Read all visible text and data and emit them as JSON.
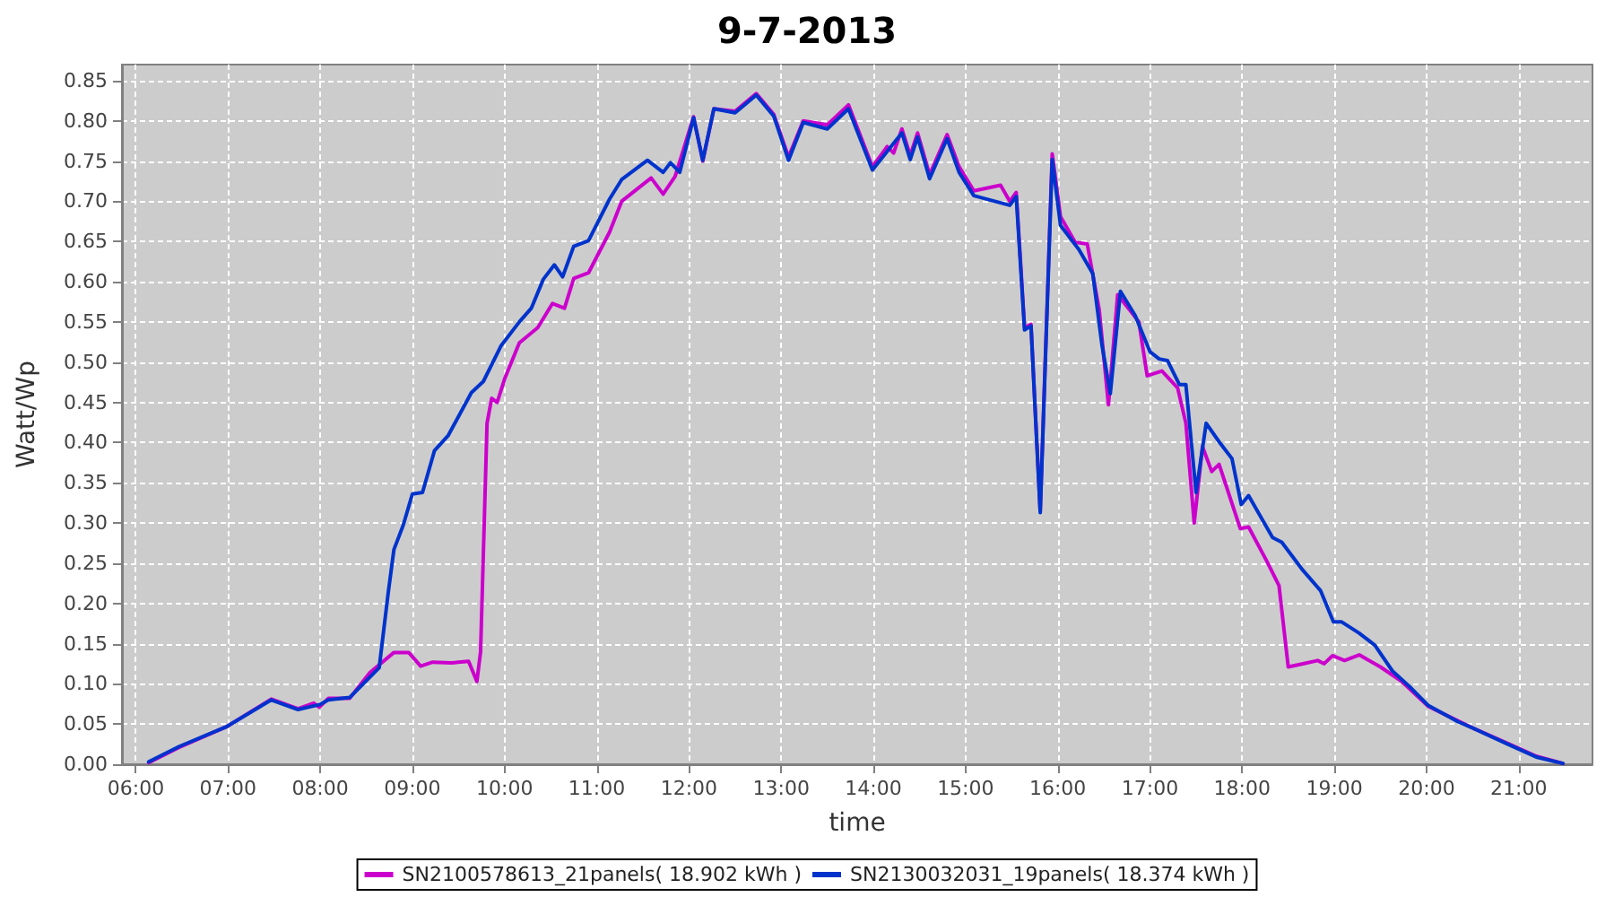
{
  "chart_data": {
    "type": "line",
    "title": "9-7-2013",
    "xlabel": "time",
    "ylabel": "Watt/Wp",
    "xlim": [
      5.85,
      21.8
    ],
    "xticks": [
      {
        "value": 6,
        "label": "06:00"
      },
      {
        "value": 7,
        "label": "07:00"
      },
      {
        "value": 8,
        "label": "08:00"
      },
      {
        "value": 9,
        "label": "09:00"
      },
      {
        "value": 10,
        "label": "10:00"
      },
      {
        "value": 11,
        "label": "11:00"
      },
      {
        "value": 12,
        "label": "12:00"
      },
      {
        "value": 13,
        "label": "13:00"
      },
      {
        "value": 14,
        "label": "14:00"
      },
      {
        "value": 15,
        "label": "15:00"
      },
      {
        "value": 16,
        "label": "16:00"
      },
      {
        "value": 17,
        "label": "17:00"
      },
      {
        "value": 18,
        "label": "18:00"
      },
      {
        "value": 19,
        "label": "19:00"
      },
      {
        "value": 20,
        "label": "20:00"
      },
      {
        "value": 21,
        "label": "21:00"
      }
    ],
    "ylim": [
      0,
      0.87
    ],
    "yticks": [
      {
        "value": 0,
        "label": "0.00"
      },
      {
        "value": 0.05,
        "label": "0.05"
      },
      {
        "value": 0.1,
        "label": "0.10"
      },
      {
        "value": 0.15,
        "label": "0.15"
      },
      {
        "value": 0.2,
        "label": "0.20"
      },
      {
        "value": 0.25,
        "label": "0.25"
      },
      {
        "value": 0.3,
        "label": "0.30"
      },
      {
        "value": 0.35,
        "label": "0.35"
      },
      {
        "value": 0.4,
        "label": "0.40"
      },
      {
        "value": 0.45,
        "label": "0.45"
      },
      {
        "value": 0.5,
        "label": "0.50"
      },
      {
        "value": 0.55,
        "label": "0.55"
      },
      {
        "value": 0.6,
        "label": "0.60"
      },
      {
        "value": 0.65,
        "label": "0.65"
      },
      {
        "value": 0.7,
        "label": "0.70"
      },
      {
        "value": 0.75,
        "label": "0.75"
      },
      {
        "value": 0.8,
        "label": "0.80"
      },
      {
        "value": 0.85,
        "label": "0.85"
      }
    ],
    "grid": true,
    "legend": "bottom",
    "marker": "none",
    "line_style": "solid",
    "series": [
      {
        "name": "SN2100578613_21panels( 18.902 kWh )",
        "color": "#cc00cc",
        "x": [
          6.14,
          6.47,
          6.99,
          7.47,
          7.76,
          7.93,
          7.99,
          8.09,
          8.32,
          8.54,
          8.8,
          8.96,
          9.09,
          9.22,
          9.42,
          9.61,
          9.7,
          9.74,
          9.81,
          9.86,
          9.92,
          10.0,
          10.16,
          10.36,
          10.52,
          10.65,
          10.75,
          10.91,
          11.14,
          11.27,
          11.59,
          11.72,
          11.85,
          12.05,
          12.15,
          12.27,
          12.5,
          12.73,
          12.92,
          13.08,
          13.24,
          13.5,
          13.73,
          13.99,
          14.15,
          14.22,
          14.31,
          14.4,
          14.48,
          14.61,
          14.8,
          14.93,
          15.09,
          15.38,
          15.48,
          15.55,
          15.64,
          15.71,
          15.81,
          15.94,
          16.03,
          16.19,
          16.32,
          16.45,
          16.55,
          16.65,
          16.78,
          16.88,
          16.97,
          17.13,
          17.3,
          17.39,
          17.48,
          17.57,
          17.67,
          17.75,
          17.98,
          18.07,
          18.27,
          18.4,
          18.5,
          18.66,
          18.82,
          18.89,
          18.98,
          19.11,
          19.27,
          19.5,
          19.73,
          20.02,
          20.34,
          20.54,
          20.86,
          21.19,
          21.48
        ],
        "values": [
          0.002,
          0.021,
          0.047,
          0.081,
          0.069,
          0.076,
          0.071,
          0.082,
          0.082,
          0.114,
          0.139,
          0.139,
          0.122,
          0.127,
          0.126,
          0.128,
          0.103,
          0.14,
          0.424,
          0.455,
          0.45,
          0.479,
          0.524,
          0.543,
          0.573,
          0.567,
          0.604,
          0.611,
          0.662,
          0.7,
          0.729,
          0.709,
          0.731,
          0.805,
          0.75,
          0.815,
          0.812,
          0.834,
          0.808,
          0.755,
          0.8,
          0.795,
          0.82,
          0.743,
          0.768,
          0.76,
          0.79,
          0.757,
          0.785,
          0.733,
          0.783,
          0.743,
          0.713,
          0.72,
          0.7,
          0.711,
          0.543,
          0.547,
          0.315,
          0.759,
          0.681,
          0.649,
          0.647,
          0.565,
          0.447,
          0.584,
          0.565,
          0.55,
          0.483,
          0.489,
          0.468,
          0.424,
          0.3,
          0.395,
          0.364,
          0.373,
          0.293,
          0.295,
          0.252,
          0.222,
          0.121,
          0.125,
          0.129,
          0.125,
          0.135,
          0.129,
          0.136,
          0.121,
          0.103,
          0.072,
          0.054,
          0.043,
          0.027,
          0.01,
          0.001
        ]
      },
      {
        "name": "SN2130032031_19panels( 18.374 kWh )",
        "color": "#0033cc",
        "x": [
          6.14,
          6.47,
          6.99,
          7.47,
          7.76,
          7.99,
          8.09,
          8.32,
          8.64,
          8.74,
          8.8,
          8.9,
          9.0,
          9.11,
          9.24,
          9.39,
          9.64,
          9.77,
          9.96,
          10.16,
          10.29,
          10.42,
          10.54,
          10.63,
          10.75,
          10.91,
          11.14,
          11.27,
          11.55,
          11.72,
          11.8,
          11.9,
          12.05,
          12.15,
          12.27,
          12.5,
          12.73,
          12.92,
          13.08,
          13.24,
          13.5,
          13.73,
          13.99,
          14.15,
          14.31,
          14.4,
          14.48,
          14.61,
          14.8,
          14.93,
          15.09,
          15.48,
          15.55,
          15.64,
          15.71,
          15.81,
          15.94,
          16.03,
          16.23,
          16.38,
          16.48,
          16.57,
          16.68,
          16.84,
          17.0,
          17.1,
          17.19,
          17.32,
          17.39,
          17.5,
          17.61,
          17.75,
          17.89,
          17.99,
          18.07,
          18.33,
          18.43,
          18.66,
          18.85,
          18.99,
          19.08,
          19.27,
          19.44,
          19.63,
          19.83,
          20.02,
          20.34,
          20.54,
          20.86,
          21.19,
          21.48
        ],
        "values": [
          0.003,
          0.022,
          0.047,
          0.08,
          0.068,
          0.074,
          0.08,
          0.083,
          0.12,
          0.215,
          0.267,
          0.297,
          0.336,
          0.338,
          0.39,
          0.409,
          0.462,
          0.476,
          0.52,
          0.55,
          0.567,
          0.603,
          0.621,
          0.606,
          0.644,
          0.651,
          0.703,
          0.727,
          0.751,
          0.736,
          0.748,
          0.736,
          0.804,
          0.751,
          0.815,
          0.81,
          0.832,
          0.806,
          0.751,
          0.798,
          0.79,
          0.815,
          0.739,
          0.762,
          0.785,
          0.752,
          0.78,
          0.728,
          0.778,
          0.736,
          0.707,
          0.695,
          0.706,
          0.54,
          0.545,
          0.313,
          0.752,
          0.67,
          0.64,
          0.61,
          0.521,
          0.461,
          0.588,
          0.558,
          0.513,
          0.504,
          0.502,
          0.472,
          0.472,
          0.338,
          0.424,
          0.401,
          0.38,
          0.323,
          0.334,
          0.282,
          0.276,
          0.241,
          0.216,
          0.177,
          0.177,
          0.163,
          0.148,
          0.116,
          0.095,
          0.073,
          0.053,
          0.043,
          0.026,
          0.009,
          0.001
        ]
      }
    ]
  }
}
